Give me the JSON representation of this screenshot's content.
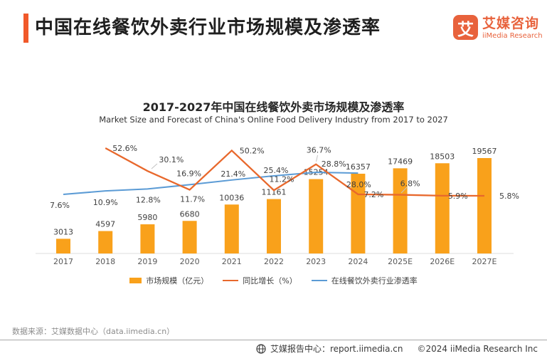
{
  "header": {
    "title": "中国在线餐饮外卖行业市场规模及渗透率",
    "logo": {
      "badge_char": "艾",
      "name_cn": "艾媒咨询",
      "name_en": "iiMedia Research"
    }
  },
  "chart": {
    "title": "2017-2027年中国在线餐饮外卖市场规模及渗透率",
    "subtitle": "Market Size and Forecast of China's Online Food Delivery Industry from 2017 to 2027"
  },
  "chart_data": {
    "type": "bar+line",
    "title": "2017-2027年中国在线餐饮外卖市场规模及渗透率",
    "categories": [
      "2017",
      "2018",
      "2019",
      "2020",
      "2021",
      "2022",
      "2023",
      "2024",
      "2025E",
      "2026E",
      "2027E"
    ],
    "series": [
      {
        "name": "市场规模（亿元）",
        "type": "bar",
        "color": "#F9A11B",
        "values": [
          3013,
          4597,
          5980,
          6680,
          10036,
          11161,
          15254,
          16357,
          17469,
          18503,
          19567
        ]
      },
      {
        "name": "同比增长（%）",
        "type": "line",
        "color": "#E8682C",
        "values": [
          null,
          52.6,
          30.1,
          11.7,
          50.2,
          11.2,
          36.7,
          7.2,
          6.8,
          5.9,
          5.8
        ]
      },
      {
        "name": "在线餐饮外卖行业渗透率",
        "type": "line",
        "color": "#5B9BD5",
        "values": [
          7.6,
          10.9,
          12.8,
          16.9,
          21.4,
          25.4,
          28.8,
          28.0,
          null,
          null,
          null
        ]
      }
    ],
    "bar_axis": {
      "min": 0,
      "max": 20000,
      "visible": false
    },
    "line_axis_visible": false,
    "grid": false,
    "legend_position": "bottom"
  },
  "colors": {
    "accent": "#F1592A",
    "logo_orange": "#E8623C",
    "bar_orange": "#F9A11B",
    "growth_line": "#E8682C",
    "penetration_line": "#5B9BD5"
  },
  "source": "数据来源：艾媒数据中心（data.iimedia.cn）",
  "footer": {
    "report_center": "艾媒报告中心：report.iimedia.cn",
    "copyright": "©2024  iiMedia Research Inc"
  }
}
